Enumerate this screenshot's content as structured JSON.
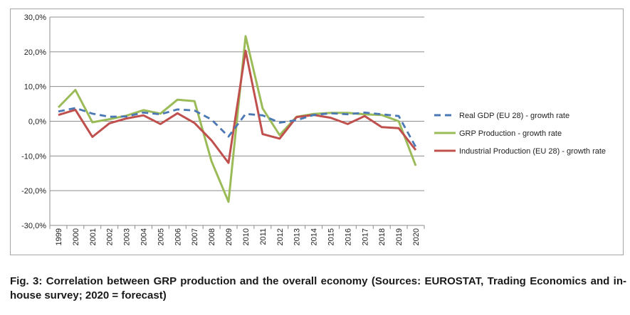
{
  "chart_data": {
    "type": "line",
    "title": "",
    "xlabel": "",
    "ylabel": "",
    "categories": [
      "1999",
      "2000",
      "2001",
      "2002",
      "2003",
      "2004",
      "2005",
      "2006",
      "2007",
      "2008",
      "2009",
      "2010",
      "2011",
      "2012",
      "2013",
      "2014",
      "2015",
      "2016",
      "2017",
      "2018",
      "2019",
      "2020"
    ],
    "ylim": [
      -30,
      30
    ],
    "yticks": [
      30,
      20,
      10,
      0,
      -10,
      -20,
      -30
    ],
    "ytick_labels": [
      "30,0%",
      "20,0%",
      "10,0%",
      "0,0%",
      "-10,0%",
      "-20,0%",
      "-30,0%"
    ],
    "grid": true,
    "legend_position": "right",
    "series": [
      {
        "name": "Real GDP (EU 28) - growth rate",
        "color": "#4a78b4",
        "style": "dashed",
        "values": [
          2.8,
          3.8,
          2.2,
          1.3,
          1.4,
          2.5,
          2.0,
          3.4,
          3.1,
          0.5,
          -4.4,
          2.1,
          1.7,
          -0.4,
          0.3,
          1.8,
          2.3,
          2.0,
          2.5,
          2.0,
          1.5,
          -7.4
        ]
      },
      {
        "name": "GRP Production - growth rate",
        "color": "#9bbb59",
        "style": "solid",
        "values": [
          4.0,
          9.0,
          -0.3,
          0.6,
          1.6,
          3.2,
          2.2,
          6.2,
          5.8,
          -11.5,
          -23.2,
          24.5,
          3.7,
          -4.0,
          1.3,
          2.1,
          2.4,
          2.4,
          2.0,
          1.8,
          0.0,
          -12.8
        ]
      },
      {
        "name": "Industrial Production (EU 28) - growth rate",
        "color": "#c0504d",
        "style": "solid",
        "values": [
          1.8,
          3.3,
          -4.5,
          -0.6,
          0.8,
          1.7,
          -0.8,
          2.3,
          -0.5,
          -5.5,
          -12.0,
          20.3,
          -3.7,
          -5.0,
          1.2,
          1.8,
          1.0,
          -0.8,
          1.5,
          -1.7,
          -2.0,
          -8.3
        ]
      }
    ]
  },
  "caption": {
    "prefix": "Fig.  3:",
    "text": " Correlation between GRP production and the overall economy (Sources: EUROSTAT, Trading Economics and in-house survey; 2020 = forecast)"
  }
}
